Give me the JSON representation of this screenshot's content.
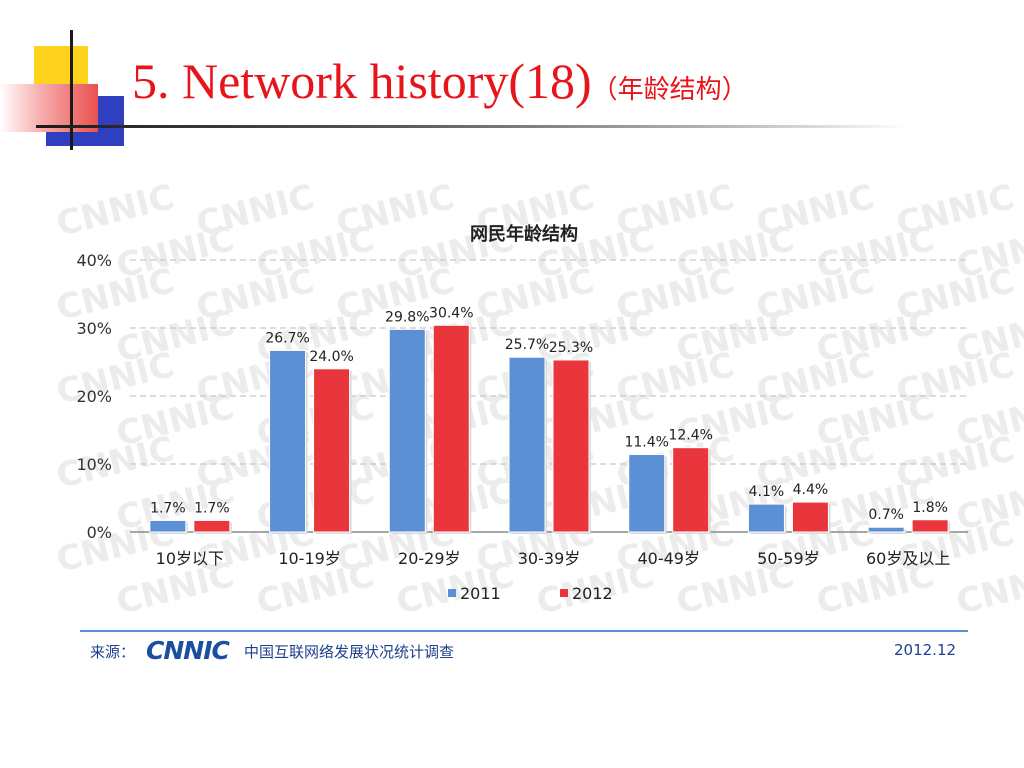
{
  "slide": {
    "title": "5. Network history(18)",
    "title_suffix": "（年龄结构）"
  },
  "chart_data": {
    "type": "bar",
    "title": "网民年龄结构",
    "categories": [
      "10岁以下",
      "10-19岁",
      "20-29岁",
      "30-39岁",
      "40-49岁",
      "50-59岁",
      "60岁及以上"
    ],
    "series": [
      {
        "name": "2011",
        "color": "#5b8fd6",
        "values": [
          1.7,
          26.7,
          29.8,
          25.7,
          11.4,
          4.1,
          0.7
        ]
      },
      {
        "name": "2012",
        "color": "#e9353c",
        "values": [
          1.7,
          24.0,
          30.4,
          25.3,
          12.4,
          4.4,
          1.8
        ]
      }
    ],
    "yticks": [
      "0%",
      "10%",
      "20%",
      "30%",
      "40%"
    ],
    "ylim": [
      0,
      40
    ],
    "grid": true,
    "legend": "bottom",
    "watermark": "CNNIC"
  },
  "footer": {
    "source_label": "来源：",
    "logo_text": "CNNIC",
    "source_text": "中国互联网络发展状况统计调查",
    "date": "2012.12"
  }
}
